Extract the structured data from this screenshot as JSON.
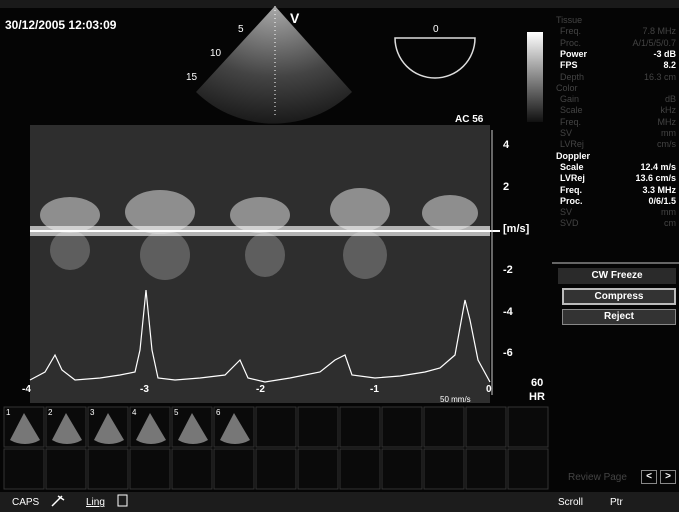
{
  "header": {
    "datetime": "30/12/2005 12:03:09"
  },
  "sector": {
    "marker": "V",
    "depths": [
      "5",
      "10",
      "15"
    ]
  },
  "indicator": {
    "label": "0"
  },
  "doppler": {
    "label": "AC 56",
    "scale_labels": [
      "4",
      "2",
      "[m/s]",
      "-2",
      "-4",
      "-6"
    ],
    "time_labels": [
      "-4",
      "-3",
      "-2",
      "-1",
      "0"
    ],
    "sweep": "50 mm/s",
    "hr_value": "60",
    "hr_label": "HR"
  },
  "params": {
    "rows": [
      {
        "label": "Tissue",
        "active": false
      },
      {
        "label": "Freq.",
        "value": "7.8 MHz",
        "active": false
      },
      {
        "label": "Proc.",
        "value": "A/1/5/5/0.7",
        "active": false
      },
      {
        "label": "Power",
        "value": "-3 dB",
        "active": true
      },
      {
        "label": "FPS",
        "value": "8.2",
        "active": true
      },
      {
        "label": "Depth",
        "value": "16.3 cm",
        "active": false
      },
      {
        "label": "Color",
        "active": false
      },
      {
        "label": "Gain",
        "value": "dB",
        "active": false
      },
      {
        "label": "Scale",
        "value": "kHz",
        "active": false
      },
      {
        "label": "Freq.",
        "value": "MHz",
        "active": false
      },
      {
        "label": "SV",
        "value": "mm",
        "active": false
      },
      {
        "label": "LVRej",
        "value": "cm/s",
        "active": false
      },
      {
        "label": "Doppler",
        "active": true
      },
      {
        "label": "Scale",
        "value": "12.4 m/s",
        "active": true
      },
      {
        "label": "LVRej",
        "value": "13.6 cm/s",
        "active": true
      },
      {
        "label": "Freq.",
        "value": "3.3 MHz",
        "active": true
      },
      {
        "label": "Proc.",
        "value": "0/6/1.5",
        "active": true
      },
      {
        "label": "SV",
        "value": "mm",
        "active": false
      },
      {
        "label": "SVD",
        "value": "cm",
        "active": false
      }
    ]
  },
  "controls": {
    "title": "CW Freeze",
    "buttons": [
      "Compress",
      "Reject"
    ]
  },
  "thumbnails": [
    "1",
    "2",
    "3",
    "4",
    "5",
    "6"
  ],
  "review": {
    "label": "Review Page",
    "prev": "<",
    "next": ">"
  },
  "toolbar": {
    "left": [
      "CAPS",
      "Ling"
    ],
    "right": [
      "Scroll",
      "Ptr"
    ]
  }
}
